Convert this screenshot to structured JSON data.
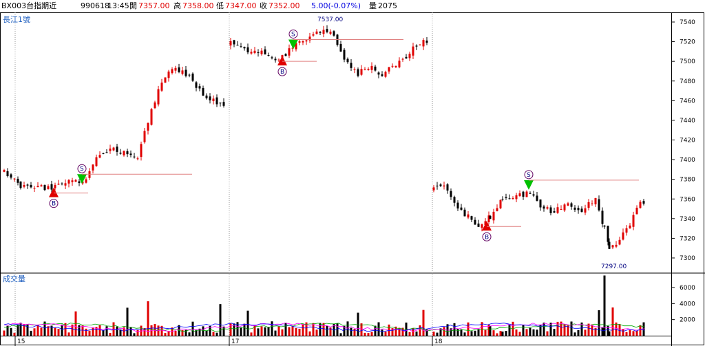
{
  "header": {
    "symbol": "BX003台指期近",
    "date": "990618",
    "time": "13:45",
    "open_label": "開",
    "open_value": "7357.00",
    "high_label": "高",
    "high_value": "7358.00",
    "low_label": "低",
    "low_value": "7347.00",
    "close_label": "收",
    "close_value": "7352.00",
    "change": "5.00(-0.07%)",
    "volume_label": "量",
    "volume_value": "2075"
  },
  "colors": {
    "up": "#e00000",
    "down": "#000000",
    "buy_marker": "#e00000",
    "sell_marker": "#00c000",
    "ma_short": "#00aa00",
    "ma_mid": "#ff00ff",
    "ma_long": "#0000ff"
  },
  "chart_data": [
    {
      "type": "candlestick",
      "title": "長江1號",
      "ylim": [
        7290,
        7545
      ],
      "yticks": [
        7300,
        7320,
        7340,
        7360,
        7380,
        7400,
        7420,
        7440,
        7460,
        7480,
        7500,
        7520,
        7540
      ],
      "day_labels": [
        "15",
        "17",
        "18"
      ],
      "annotations": [
        {
          "label": "7537.00",
          "value": 7537
        },
        {
          "label": "7297.00",
          "value": 7297
        }
      ],
      "signals": [
        {
          "type": "buy",
          "letter": "B",
          "price": 7366
        },
        {
          "type": "sell",
          "letter": "S",
          "price": 7381
        },
        {
          "type": "buy",
          "letter": "B",
          "price": 7500
        },
        {
          "type": "sell",
          "letter": "S",
          "price": 7518
        },
        {
          "type": "buy",
          "letter": "B",
          "price": 7332
        },
        {
          "type": "sell",
          "letter": "S",
          "price": 7375
        }
      ],
      "series_ohlc_approx": {
        "day15": {
          "open": 7385,
          "high": 7497,
          "low": 7364,
          "close": 7455
        },
        "day17": {
          "open": 7518,
          "high": 7537,
          "low": 7480,
          "close": 7520
        },
        "day18": {
          "open": 7365,
          "high": 7388,
          "low": 7297,
          "close": 7352
        }
      }
    },
    {
      "type": "bar",
      "title": "成交量",
      "ylim": [
        0,
        8000
      ],
      "yticks": [
        2000,
        4000,
        6000
      ],
      "max_value": 7500
    }
  ]
}
